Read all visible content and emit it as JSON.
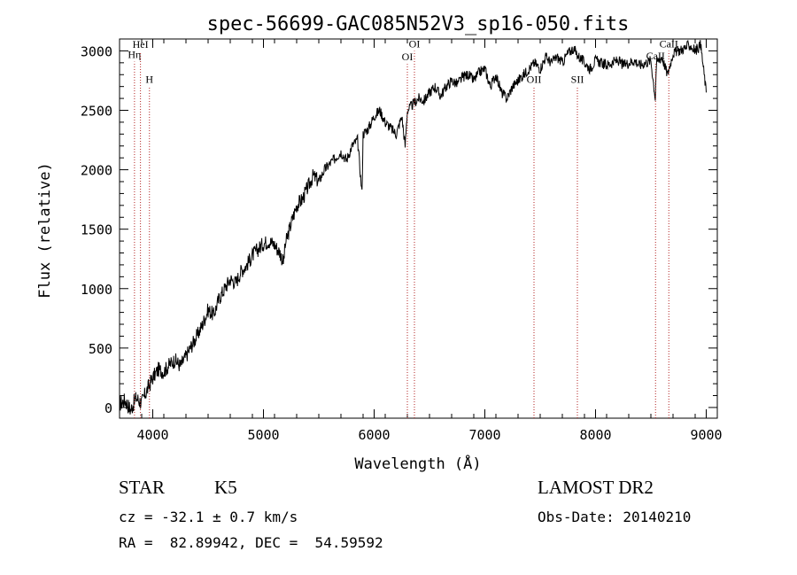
{
  "chart_data": {
    "type": "line",
    "title": "spec-56699-GAC085N52V3_sp16-050.fits",
    "xlabel": "Wavelength (Å)",
    "ylabel": "Flux (relative)",
    "xlim": [
      3700,
      9100
    ],
    "ylim": [
      -90,
      3100
    ],
    "x_ticks": [
      4000,
      5000,
      6000,
      7000,
      8000,
      9000
    ],
    "y_ticks": [
      0,
      500,
      1000,
      1500,
      2000,
      2500,
      3000
    ],
    "x_tick_labels": [
      "4000",
      "5000",
      "6000",
      "7000",
      "8000",
      "9000"
    ],
    "y_tick_labels": [
      "0",
      "500",
      "1000",
      "1500",
      "2000",
      "2500",
      "3000"
    ],
    "line_color": "#000000",
    "marker_color": "#b22222",
    "series": [
      {
        "x": [
          3700,
          3750,
          3800,
          3850,
          3900,
          3950,
          4000,
          4050,
          4100,
          4150,
          4200,
          4250,
          4300,
          4350,
          4400,
          4450,
          4500,
          4550,
          4600,
          4650,
          4700,
          4750,
          4800,
          4850,
          4900,
          4950,
          5000,
          5050,
          5100,
          5150,
          5180,
          5200,
          5250,
          5300,
          5350,
          5400,
          5450,
          5500,
          5550,
          5600,
          5650,
          5700,
          5750,
          5800,
          5850,
          5890,
          5900,
          5950,
          6000,
          6050,
          6100,
          6150,
          6200,
          6250,
          6280,
          6300,
          6350,
          6400,
          6450,
          6500,
          6550,
          6600,
          6650,
          6700,
          6750,
          6800,
          6850,
          6900,
          6950,
          7000,
          7050,
          7100,
          7150,
          7200,
          7250,
          7300,
          7350,
          7400,
          7450,
          7500,
          7550,
          7600,
          7650,
          7700,
          7750,
          7800,
          7850,
          7900,
          7950,
          8000,
          8050,
          8100,
          8150,
          8200,
          8250,
          8300,
          8350,
          8400,
          8450,
          8500,
          8540,
          8550,
          8600,
          8650,
          8700,
          8750,
          8800,
          8850,
          8900,
          8950,
          9000
        ],
        "y": [
          30,
          60,
          -20,
          80,
          40,
          150,
          250,
          320,
          300,
          360,
          400,
          350,
          430,
          520,
          600,
          700,
          820,
          780,
          920,
          1000,
          1080,
          1050,
          1150,
          1200,
          1280,
          1330,
          1380,
          1400,
          1370,
          1300,
          1220,
          1380,
          1550,
          1700,
          1750,
          1850,
          1950,
          1900,
          2000,
          2050,
          2100,
          2150,
          2080,
          2200,
          2250,
          1800,
          2300,
          2350,
          2450,
          2500,
          2400,
          2350,
          2300,
          2450,
          2200,
          2500,
          2550,
          2600,
          2580,
          2650,
          2700,
          2620,
          2700,
          2750,
          2720,
          2780,
          2800,
          2750,
          2820,
          2850,
          2700,
          2800,
          2650,
          2600,
          2700,
          2750,
          2800,
          2850,
          2900,
          2850,
          2950,
          2900,
          2950,
          2900,
          2980,
          3020,
          2950,
          2900,
          2850,
          2920,
          2900,
          2880,
          2900,
          2920,
          2880,
          2900,
          2920,
          2880,
          2900,
          2920,
          2600,
          2900,
          2950,
          2800,
          2980,
          3000,
          3020,
          3050,
          3000,
          3050,
          2650
        ]
      }
    ],
    "lines": [
      {
        "x": 3835,
        "labels": [
          "Hη"
        ],
        "anchor_y": 2940
      },
      {
        "x": 3889,
        "labels": [
          "HeI"
        ],
        "anchor_y": 3025
      },
      {
        "x": 3970,
        "labels": [
          "H"
        ],
        "anchor_y": 2730
      },
      {
        "x": 6300,
        "labels": [
          "OI"
        ],
        "anchor_y": 2920
      },
      {
        "x": 6364,
        "labels": [
          "OI"
        ],
        "anchor_y": 3030
      },
      {
        "x": 7444,
        "labels": [
          "OII"
        ],
        "anchor_y": 2730
      },
      {
        "x": 7836,
        "labels": [
          "SII"
        ],
        "anchor_y": 2730
      },
      {
        "x": 8542,
        "labels": [
          "CaII"
        ],
        "anchor_y": 2930
      },
      {
        "x": 8662,
        "labels": [
          "CaII"
        ],
        "anchor_y": 3030
      }
    ],
    "grid": false,
    "legend": "none"
  },
  "info": {
    "obj_class": "STAR",
    "subclass": "K5",
    "cz_line": "cz = -32.1 ± 0.7 km/s",
    "coord_line": "RA =  82.89942, DEC =  54.59592",
    "survey": "LAMOST DR2",
    "obs_date": "Obs-Date: 20140210"
  }
}
